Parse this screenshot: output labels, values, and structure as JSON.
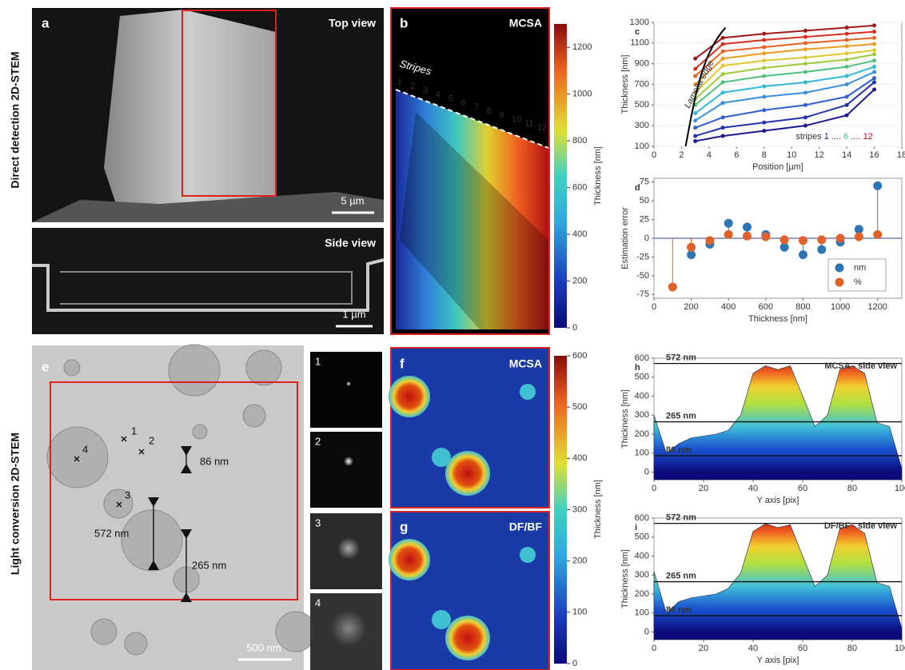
{
  "row_labels": [
    "Direct detection 2D-STEM",
    "Light conversion 2D-STEM"
  ],
  "panels": {
    "a": {
      "letter": "a",
      "label": "Top view",
      "scale": "5 µm"
    },
    "a_side": {
      "label": "Side view",
      "scale": "1 µm"
    },
    "b": {
      "letter": "b",
      "label": "MCSA",
      "stripes_title": "Stripes",
      "stripe_labels": [
        "1",
        "2",
        "3",
        "4",
        "5",
        "6",
        "7",
        "8",
        "9",
        "10",
        "11",
        "12"
      ]
    },
    "colorbar_top": {
      "label": "Thickness [nm]",
      "lim": [
        0,
        1300
      ],
      "ticks": [
        0,
        200,
        400,
        600,
        800,
        1000,
        1200
      ]
    },
    "e": {
      "letter": "e",
      "points": [
        "1",
        "2",
        "3",
        "4"
      ],
      "annotations": [
        "86 nm",
        "572 nm",
        "265 nm"
      ],
      "scale": "500 nm"
    },
    "insets": [
      "1",
      "2",
      "3",
      "4"
    ],
    "f": {
      "letter": "f",
      "label": "MCSA"
    },
    "g": {
      "letter": "g",
      "label": "DF/BF"
    },
    "colorbar_bottom": {
      "label": "Thickness [nm]",
      "lim": [
        0,
        600
      ],
      "ticks": [
        0,
        100,
        200,
        300,
        400,
        500,
        600
      ]
    }
  },
  "chart_data": [
    {
      "type": "scatter",
      "panel": "c",
      "xlabel": "Position [µm]",
      "ylabel": "Thickness [nm]",
      "annotation": "Lamella edge",
      "legend_parts": [
        "stripes",
        "1",
        "....",
        "6",
        "....",
        "12"
      ],
      "xlim": [
        0,
        18
      ],
      "ylim": [
        100,
        1300
      ],
      "xticks": [
        0,
        2,
        4,
        6,
        8,
        10,
        12,
        14,
        16,
        18
      ],
      "yticks": [
        100,
        300,
        500,
        700,
        900,
        1100,
        1300
      ],
      "x": [
        3,
        5,
        8,
        11,
        14,
        16
      ],
      "series": [
        {
          "name": "1",
          "color": "#1a1a8c",
          "values": [
            150,
            200,
            250,
            300,
            400,
            650
          ]
        },
        {
          "name": "2",
          "color": "#2233b0",
          "values": [
            200,
            280,
            330,
            380,
            500,
            720
          ]
        },
        {
          "name": "3",
          "color": "#2f5fd0",
          "values": [
            280,
            380,
            450,
            500,
            580,
            760
          ]
        },
        {
          "name": "4",
          "color": "#3a8fe0",
          "values": [
            350,
            520,
            580,
            620,
            700,
            820
          ]
        },
        {
          "name": "5",
          "color": "#30b8d8",
          "values": [
            420,
            620,
            680,
            720,
            780,
            870
          ]
        },
        {
          "name": "6",
          "color": "#4cc27a",
          "values": [
            500,
            720,
            780,
            820,
            870,
            930
          ]
        },
        {
          "name": "7",
          "color": "#9ccc3c",
          "values": [
            560,
            800,
            860,
            900,
            940,
            990
          ]
        },
        {
          "name": "8",
          "color": "#e0c830",
          "values": [
            620,
            880,
            930,
            960,
            1000,
            1030
          ]
        },
        {
          "name": "9",
          "color": "#f09a20",
          "values": [
            700,
            950,
            1000,
            1040,
            1070,
            1090
          ]
        },
        {
          "name": "10",
          "color": "#e86020",
          "values": [
            780,
            1020,
            1060,
            1100,
            1130,
            1150
          ]
        },
        {
          "name": "11",
          "color": "#d83020",
          "values": [
            850,
            1090,
            1130,
            1160,
            1190,
            1210
          ]
        },
        {
          "name": "12",
          "color": "#a01818",
          "values": [
            950,
            1150,
            1190,
            1220,
            1250,
            1270
          ]
        }
      ]
    },
    {
      "type": "stem",
      "panel": "d",
      "xlabel": "Thickness [nm]",
      "ylabel": "Estimation error",
      "xlim": [
        0,
        1330
      ],
      "ylim": [
        -80,
        80
      ],
      "xticks": [
        0,
        200,
        400,
        600,
        800,
        1000,
        1200
      ],
      "yticks": [
        -75,
        -50,
        -25,
        0,
        25,
        50,
        75
      ],
      "x": [
        100,
        200,
        300,
        400,
        500,
        600,
        700,
        800,
        900,
        1000,
        1100,
        1200
      ],
      "series": [
        {
          "name": "nm",
          "color": "#2e75b6",
          "values": [
            null,
            -22,
            -8,
            20,
            15,
            5,
            -12,
            -22,
            -15,
            -5,
            12,
            70
          ]
        },
        {
          "name": "%",
          "color": "#e0622a",
          "values": [
            -65,
            -12,
            -3,
            5,
            3,
            2,
            -2,
            -3,
            -2,
            0,
            2,
            5
          ]
        }
      ]
    },
    {
      "type": "area",
      "panel": "h",
      "title": "MCSA - side view",
      "xlabel": "Y axis [pix]",
      "ylabel": "Thickness [nm]",
      "xlim": [
        0,
        100
      ],
      "ylim": [
        -40,
        600
      ],
      "xticks": [
        0,
        20,
        40,
        60,
        80,
        100
      ],
      "yticks": [
        0,
        100,
        200,
        300,
        400,
        500,
        600
      ],
      "ref_lines": [
        {
          "value": 572,
          "label": "572 nm"
        },
        {
          "value": 265,
          "label": "265 nm"
        },
        {
          "value": 86,
          "label": "86 nm"
        }
      ],
      "x": [
        0,
        5,
        10,
        15,
        20,
        25,
        30,
        35,
        40,
        45,
        50,
        55,
        60,
        65,
        70,
        75,
        80,
        85,
        90,
        95,
        100
      ],
      "values": [
        300,
        100,
        150,
        180,
        190,
        200,
        220,
        300,
        520,
        560,
        540,
        560,
        400,
        240,
        300,
        540,
        560,
        520,
        260,
        240,
        20
      ]
    },
    {
      "type": "area",
      "panel": "i",
      "title": "DF/BF - side view",
      "xlabel": "Y axis [pix]",
      "ylabel": "Thickness [nm]",
      "xlim": [
        0,
        100
      ],
      "ylim": [
        -40,
        600
      ],
      "xticks": [
        0,
        20,
        40,
        60,
        80,
        100
      ],
      "yticks": [
        0,
        100,
        200,
        300,
        400,
        500,
        600
      ],
      "ref_lines": [
        {
          "value": 572,
          "label": "572 nm"
        },
        {
          "value": 265,
          "label": "265 nm"
        },
        {
          "value": 86,
          "label": "86 nm"
        }
      ],
      "x": [
        0,
        5,
        10,
        15,
        20,
        25,
        30,
        35,
        40,
        45,
        50,
        55,
        60,
        65,
        70,
        75,
        80,
        85,
        90,
        95,
        100
      ],
      "values": [
        320,
        100,
        160,
        180,
        190,
        200,
        230,
        310,
        530,
        570,
        550,
        565,
        400,
        240,
        300,
        545,
        565,
        520,
        260,
        240,
        20
      ]
    }
  ]
}
